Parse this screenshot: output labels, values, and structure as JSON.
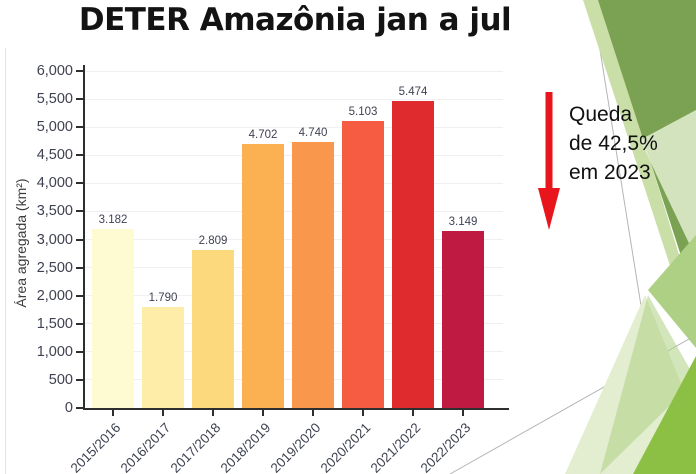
{
  "title": "DETER Amazônia jan a jul",
  "chart_data": {
    "type": "bar",
    "title": "DETER Amazônia jan a jul",
    "categories": [
      "2015/2016",
      "2016/2017",
      "2017/2018",
      "2018/2019",
      "2019/2020",
      "2020/2021",
      "2021/2022",
      "2022/2023"
    ],
    "values": [
      3182,
      1790,
      2809,
      4702,
      4740,
      5103,
      5474,
      3149
    ],
    "value_labels": [
      "3.182",
      "1.790",
      "2.809",
      "4.702",
      "4.740",
      "5.103",
      "5.474",
      "3.149"
    ],
    "bar_colors": [
      "#fefad2",
      "#fdeda9",
      "#fcd97d",
      "#fbb052",
      "#f9974d",
      "#f65c42",
      "#df2a2e",
      "#be1a42"
    ],
    "xlabel": "",
    "ylabel": "Área agregada (km²)",
    "ylim": [
      0,
      6000
    ],
    "ytick_step": 500,
    "ytick_labels": [
      "0",
      "500",
      "1,000",
      "1,500",
      "2,000",
      "2,500",
      "3,000",
      "3,500",
      "4,000",
      "4,500",
      "5,000",
      "5,500",
      "6,000"
    ],
    "grid": true,
    "legend": false
  },
  "annotation": {
    "line1": "Queda",
    "line2": "de 42,5%",
    "line3": "em 2023",
    "arrow_color": "#e8161c"
  },
  "theme": {
    "green_dark": "#7ba152",
    "green_bright": "#8cc045",
    "green_mid": "#aed084",
    "green_pale": "#e3eed1",
    "green_light": "#cadfa8",
    "line_gray": "#b5b5b5"
  }
}
